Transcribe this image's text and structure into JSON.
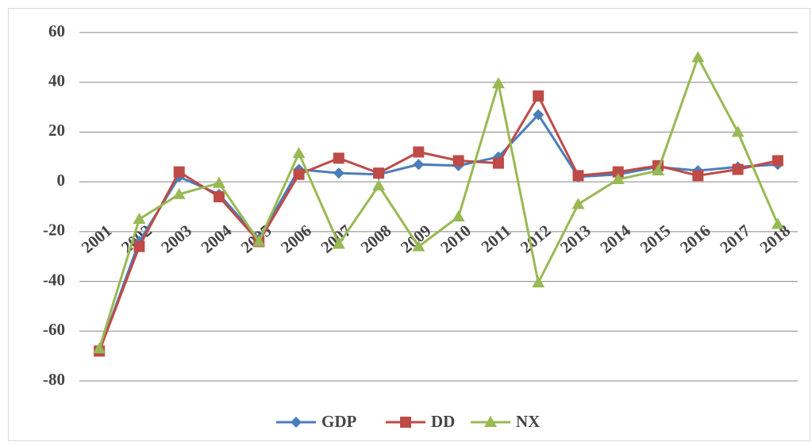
{
  "chart_data": {
    "type": "line",
    "categories": [
      "2001",
      "2002",
      "2003",
      "2004",
      "2005",
      "2006",
      "2007",
      "2008",
      "2009",
      "2010",
      "2011",
      "2012",
      "2013",
      "2014",
      "2015",
      "2016",
      "2017",
      "2018"
    ],
    "series": [
      {
        "name": "GDP",
        "color": "#4a7ebb",
        "marker": "diamond",
        "values": [
          -68,
          -24,
          2,
          -5,
          -23,
          5,
          3.5,
          3,
          7,
          6.5,
          10,
          27,
          2,
          3,
          6,
          4.5,
          6,
          7
        ]
      },
      {
        "name": "DD",
        "color": "#be4b48",
        "marker": "square",
        "values": [
          -68,
          -26,
          4,
          -6,
          -24,
          3,
          9.5,
          3.5,
          12,
          8.5,
          7.5,
          34.5,
          2.5,
          4,
          6.5,
          2.5,
          5,
          8.5
        ]
      },
      {
        "name": "NX",
        "color": "#98b954",
        "marker": "triangle",
        "values": [
          -67,
          -15,
          -5,
          -0.5,
          -24,
          11.5,
          -25,
          -1.5,
          -26,
          -14,
          39.5,
          -40.5,
          -9,
          1,
          4.5,
          50,
          20,
          -17
        ]
      }
    ],
    "ylim": [
      -80,
      60
    ],
    "yticks": [
      -80,
      -60,
      -40,
      -20,
      0,
      20,
      40,
      60
    ],
    "grid": true,
    "legend": "bottom"
  }
}
